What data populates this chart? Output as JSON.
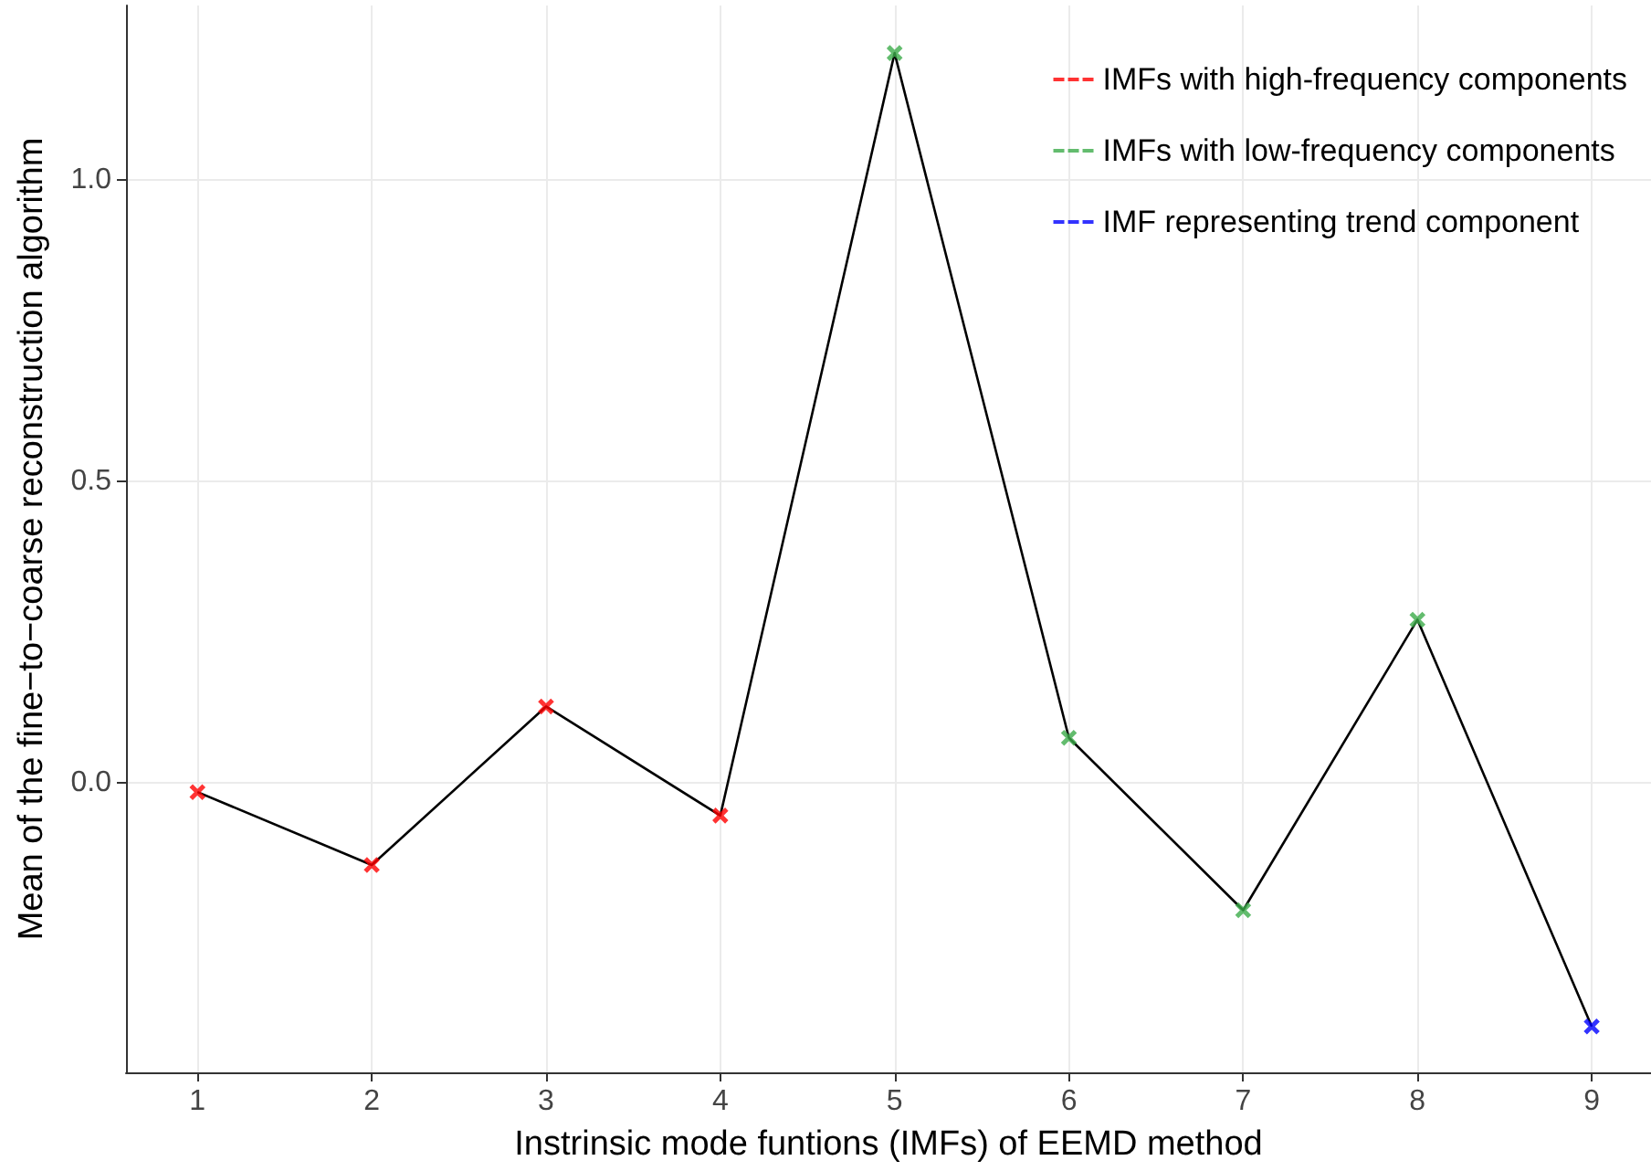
{
  "chart_data": {
    "type": "scatter",
    "xlabel": "Instrinsic mode funtions (IMFs) of EEMD method",
    "ylabel": "Mean of the fine−to−coarse reconstruction algorithm",
    "series": [
      {
        "type": "line",
        "color": "#000000",
        "marker": "none",
        "x": [
          1,
          2,
          3,
          4,
          5,
          6,
          7,
          8,
          9
        ],
        "values": [
          -0.015,
          -0.136,
          0.127,
          -0.054,
          1.211,
          0.075,
          -0.211,
          0.271,
          -0.404
        ]
      },
      {
        "name": "IMFs with high-frequency components",
        "color": "#ff0000",
        "x": [
          1,
          2,
          3,
          4
        ],
        "values": [
          -0.015,
          -0.136,
          0.127,
          -0.054
        ]
      },
      {
        "name": "IMFs with low-frequency components",
        "color": "#3cab4a",
        "x": [
          5,
          6,
          7,
          8
        ],
        "values": [
          1.211,
          0.075,
          -0.211,
          0.271
        ]
      },
      {
        "name": "IMF representing trend component",
        "color": "#0000ff",
        "x": [
          9
        ],
        "values": [
          -0.404
        ]
      }
    ],
    "marker": "cross",
    "xlim": [
      0.59,
      9.34
    ],
    "xticks": [
      1,
      2,
      3,
      4,
      5,
      6,
      7,
      8,
      9
    ],
    "ylim": [
      -0.48,
      1.29
    ],
    "yticks": [
      {
        "value": 0,
        "label": "0.0"
      },
      {
        "value": 0.5,
        "label": "0.5"
      },
      {
        "value": 1,
        "label": "1.0"
      }
    ],
    "grid": true,
    "legend": "top right"
  }
}
